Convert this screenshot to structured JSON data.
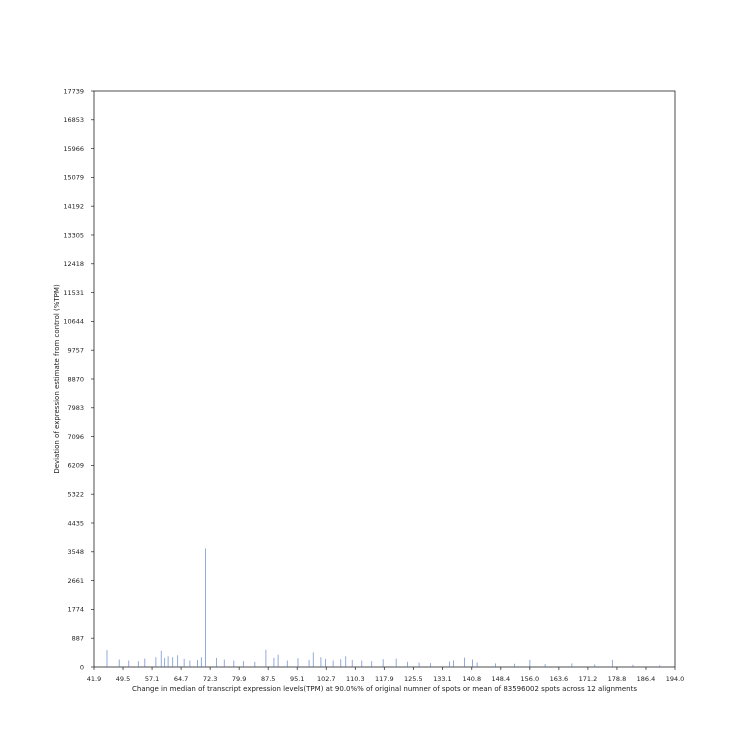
{
  "chart_data": {
    "type": "line",
    "xlabel": "Change in median of transcript expression levels(TPM) at 90.0%% of original numner of spots or mean of 83596002 spots across 12 alignments",
    "ylabel": "Deviation of expression estimate from control (%TPM)",
    "xlim": [
      41.9,
      194.0
    ],
    "ylim": [
      0,
      17739
    ],
    "x_ticks": [
      "41.9",
      "49.5",
      "57.1",
      "64.7",
      "72.3",
      "79.9",
      "87.5",
      "95.1",
      "102.7",
      "110.3",
      "117.9",
      "125.5",
      "133.1",
      "140.8",
      "148.4",
      "156.0",
      "163.6",
      "171.2",
      "178.8",
      "186.4",
      "194.0"
    ],
    "y_ticks": [
      "0",
      "887",
      "1774",
      "2661",
      "3548",
      "4435",
      "5322",
      "6209",
      "7096",
      "7983",
      "8870",
      "9757",
      "10644",
      "11531",
      "12418",
      "13305",
      "14192",
      "15079",
      "15966",
      "16853",
      "17739"
    ],
    "grid": false,
    "series": [
      {
        "color": "#4a72c4",
        "spikes": [
          {
            "x": 45.3,
            "y": 520
          },
          {
            "x": 48.5,
            "y": 230
          },
          {
            "x": 51.0,
            "y": 200
          },
          {
            "x": 53.5,
            "y": 180
          },
          {
            "x": 55.2,
            "y": 260
          },
          {
            "x": 58.1,
            "y": 300
          },
          {
            "x": 59.5,
            "y": 500
          },
          {
            "x": 60.4,
            "y": 280
          },
          {
            "x": 61.3,
            "y": 330
          },
          {
            "x": 62.5,
            "y": 300
          },
          {
            "x": 63.8,
            "y": 360
          },
          {
            "x": 65.5,
            "y": 250
          },
          {
            "x": 67.0,
            "y": 200
          },
          {
            "x": 69.0,
            "y": 210
          },
          {
            "x": 70.0,
            "y": 300
          },
          {
            "x": 71.1,
            "y": 3650
          },
          {
            "x": 74.0,
            "y": 280
          },
          {
            "x": 76.0,
            "y": 230
          },
          {
            "x": 78.5,
            "y": 200
          },
          {
            "x": 81.0,
            "y": 180
          },
          {
            "x": 84.0,
            "y": 160
          },
          {
            "x": 86.9,
            "y": 530
          },
          {
            "x": 89.0,
            "y": 280
          },
          {
            "x": 90.1,
            "y": 380
          },
          {
            "x": 92.5,
            "y": 200
          },
          {
            "x": 95.3,
            "y": 270
          },
          {
            "x": 98.2,
            "y": 220
          },
          {
            "x": 99.3,
            "y": 450
          },
          {
            "x": 101.3,
            "y": 300
          },
          {
            "x": 102.5,
            "y": 250
          },
          {
            "x": 104.5,
            "y": 200
          },
          {
            "x": 106.5,
            "y": 240
          },
          {
            "x": 107.8,
            "y": 330
          },
          {
            "x": 109.5,
            "y": 220
          },
          {
            "x": 112.0,
            "y": 200
          },
          {
            "x": 114.6,
            "y": 180
          },
          {
            "x": 117.6,
            "y": 240
          },
          {
            "x": 121.0,
            "y": 260
          },
          {
            "x": 124.0,
            "y": 160
          },
          {
            "x": 127.0,
            "y": 140
          },
          {
            "x": 130.0,
            "y": 120
          },
          {
            "x": 135.0,
            "y": 170
          },
          {
            "x": 136.0,
            "y": 200
          },
          {
            "x": 138.9,
            "y": 290
          },
          {
            "x": 141.0,
            "y": 230
          },
          {
            "x": 142.2,
            "y": 140
          },
          {
            "x": 147.0,
            "y": 110
          },
          {
            "x": 152.0,
            "y": 100
          },
          {
            "x": 156.0,
            "y": 220
          },
          {
            "x": 160.0,
            "y": 90
          },
          {
            "x": 167.0,
            "y": 110
          },
          {
            "x": 173.0,
            "y": 80
          },
          {
            "x": 177.6,
            "y": 220
          },
          {
            "x": 183.0,
            "y": 70
          },
          {
            "x": 190.0,
            "y": 50
          }
        ]
      }
    ]
  }
}
